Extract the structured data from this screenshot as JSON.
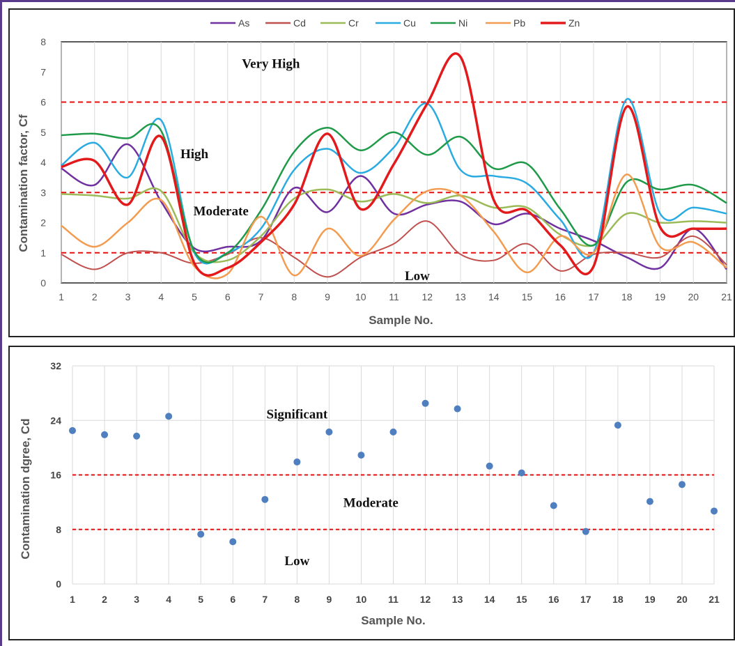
{
  "colors": {
    "frame": "#5a3a8a",
    "threshold": "#e01010",
    "grid": "#d9d9d9",
    "scatter": "#4f7fbf"
  },
  "chart_data": [
    {
      "type": "line",
      "title": "",
      "xlabel": "Sample No.",
      "ylabel": "Contamination factor, Cf",
      "xlim": [
        1,
        21
      ],
      "ylim": [
        0,
        8
      ],
      "yticks": [
        0,
        1,
        2,
        3,
        4,
        5,
        6,
        7,
        8
      ],
      "grid": "vertical",
      "legend_placement": "top",
      "x": [
        1,
        2,
        3,
        4,
        5,
        6,
        7,
        8,
        9,
        10,
        11,
        12,
        13,
        14,
        15,
        16,
        17,
        18,
        19,
        20,
        21
      ],
      "series": [
        {
          "name": "As",
          "color": "#7030a0",
          "width": 2.5,
          "values": [
            3.8,
            3.25,
            4.6,
            2.7,
            1.15,
            1.2,
            1.4,
            3.15,
            2.35,
            3.55,
            2.3,
            2.6,
            2.7,
            1.95,
            2.3,
            1.8,
            1.4,
            0.85,
            0.5,
            1.8,
            0.45
          ]
        },
        {
          "name": "Cd",
          "color": "#c0504d",
          "width": 2,
          "values": [
            0.95,
            0.45,
            1.0,
            1.0,
            0.65,
            0.95,
            1.5,
            0.85,
            0.2,
            0.85,
            1.3,
            2.05,
            0.95,
            0.75,
            1.3,
            0.4,
            0.95,
            1.0,
            0.85,
            1.55,
            0.6
          ]
        },
        {
          "name": "Cr",
          "color": "#9bbb59",
          "width": 2.5,
          "values": [
            2.95,
            2.9,
            2.8,
            3.05,
            1.0,
            0.75,
            1.55,
            2.8,
            3.1,
            2.7,
            2.95,
            2.65,
            2.9,
            2.5,
            2.5,
            1.6,
            1.25,
            2.3,
            2.0,
            2.05,
            2.0
          ]
        },
        {
          "name": "Cu",
          "color": "#29abe2",
          "width": 2.5,
          "values": [
            3.9,
            4.65,
            3.5,
            5.4,
            1.0,
            1.0,
            1.8,
            3.75,
            4.45,
            3.65,
            4.5,
            5.95,
            3.75,
            3.55,
            3.3,
            2.1,
            1.0,
            6.1,
            2.3,
            2.5,
            2.3
          ]
        },
        {
          "name": "Ni",
          "color": "#1f9a48",
          "width": 2.5,
          "values": [
            4.9,
            4.95,
            4.8,
            5.05,
            1.05,
            1.0,
            2.4,
            4.35,
            5.15,
            4.4,
            5.0,
            4.25,
            4.85,
            3.8,
            3.95,
            2.45,
            1.25,
            3.35,
            3.1,
            3.25,
            2.65
          ]
        },
        {
          "name": "Pb",
          "color": "#f39c50",
          "width": 2.5,
          "values": [
            1.9,
            1.2,
            2.0,
            2.75,
            0.55,
            0.3,
            2.2,
            0.25,
            1.8,
            0.9,
            2.1,
            3.05,
            2.9,
            1.7,
            0.35,
            1.55,
            1.0,
            3.6,
            1.2,
            1.35,
            0.5
          ]
        },
        {
          "name": "Zn",
          "color": "#e31a1c",
          "width": 3.5,
          "values": [
            3.85,
            4.05,
            2.6,
            4.85,
            0.65,
            0.5,
            1.35,
            2.6,
            4.95,
            2.45,
            3.95,
            5.95,
            7.5,
            2.75,
            2.4,
            1.25,
            0.55,
            5.85,
            1.85,
            1.8,
            1.8
          ]
        }
      ],
      "thresholds": [
        1,
        3,
        6
      ],
      "zones": [
        {
          "label": "Very High",
          "x": 7.3,
          "y": 7.3
        },
        {
          "label": "High",
          "x": 5.0,
          "y": 4.3
        },
        {
          "label": "Moderate",
          "x": 5.8,
          "y": 2.4
        },
        {
          "label": "Low",
          "x": 11.7,
          "y": 0.25
        }
      ]
    },
    {
      "type": "scatter",
      "title": "",
      "xlabel": "Sample No.",
      "ylabel": "Contamination dgree, Cd",
      "xlim": [
        1,
        21
      ],
      "ylim": [
        0,
        32
      ],
      "yticks": [
        0,
        8,
        16,
        24,
        32
      ],
      "grid": "both",
      "x": [
        1,
        2,
        3,
        4,
        5,
        6,
        7,
        8,
        9,
        10,
        11,
        12,
        13,
        14,
        15,
        16,
        17,
        18,
        19,
        20,
        21
      ],
      "values": [
        22.5,
        21.9,
        21.7,
        24.6,
        7.3,
        6.2,
        12.4,
        17.9,
        22.3,
        18.9,
        22.3,
        26.5,
        25.7,
        17.3,
        16.3,
        11.5,
        7.7,
        23.3,
        12.1,
        14.6,
        10.7
      ],
      "thresholds": [
        8,
        16
      ],
      "zones": [
        {
          "label": "Significant",
          "x": 8.0,
          "y": 25.0
        },
        {
          "label": "Moderate",
          "x": 10.3,
          "y": 12.0
        },
        {
          "label": "Low",
          "x": 8.0,
          "y": 3.5
        }
      ]
    }
  ]
}
